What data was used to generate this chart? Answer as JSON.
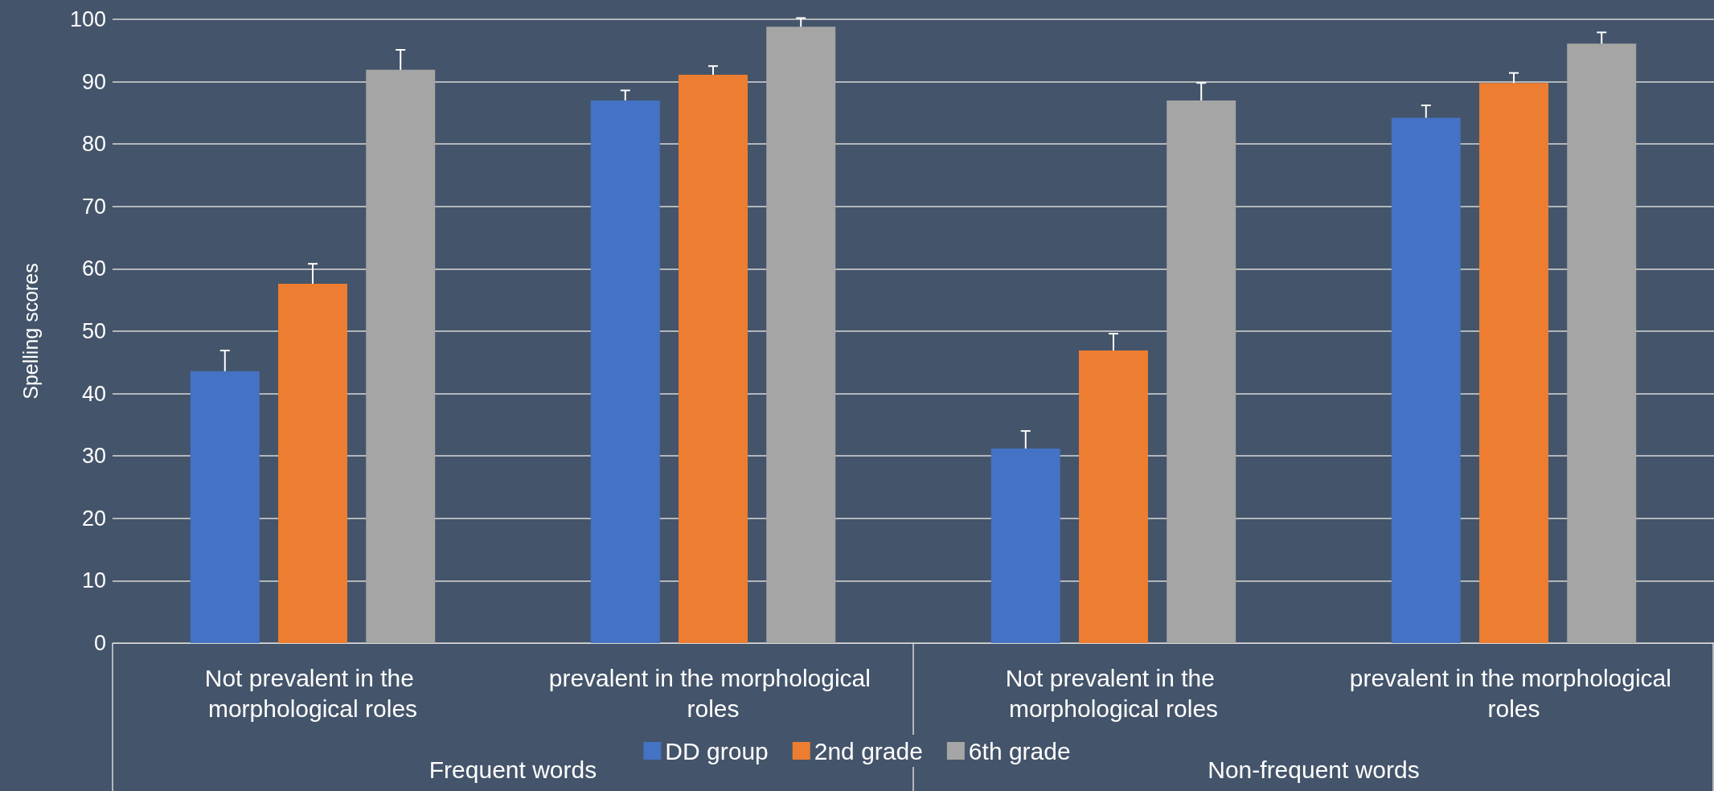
{
  "chart_data": {
    "type": "bar",
    "categories": [
      "Not prevalent in the morphological roles",
      "prevalent in the morphological roles",
      "Not prevalent in the morphological roles",
      "prevalent in the morphological roles"
    ],
    "series": [
      {
        "name": "DD group",
        "color": "#4472c4",
        "values": [
          43.6,
          87.0,
          31.2,
          84.2
        ],
        "errors": [
          3.3,
          1.6,
          2.8,
          2.0
        ]
      },
      {
        "name": "2nd grade",
        "color": "#ed7d31",
        "values": [
          57.6,
          91.1,
          46.9,
          89.8
        ],
        "errors": [
          3.2,
          1.4,
          2.7,
          1.6
        ]
      },
      {
        "name": "6th grade",
        "color": "#a5a5a5",
        "values": [
          91.9,
          98.8,
          87.0,
          96.1
        ],
        "errors": [
          3.2,
          1.4,
          2.8,
          1.8
        ]
      }
    ],
    "ylabel": "Spelling scores",
    "annotations": [
      "Frequent words",
      "Non-frequent words"
    ],
    "ylim": [
      0,
      100
    ],
    "yticks": [
      0,
      10,
      20,
      30,
      40,
      50,
      60,
      70,
      80,
      90,
      100
    ],
    "grid": "y",
    "legend": "bottom"
  }
}
